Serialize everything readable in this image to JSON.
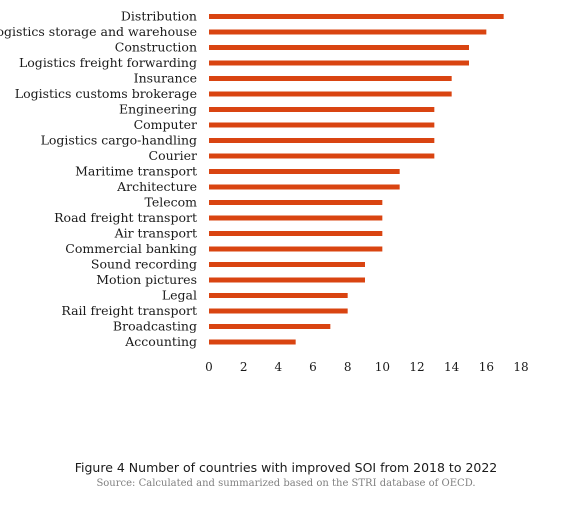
{
  "chart_data": {
    "type": "bar",
    "orientation": "horizontal",
    "categories": [
      "Distribution",
      "Logistics storage and warehouse",
      "Construction",
      "Logistics freight forwarding",
      "Insurance",
      "Logistics customs brokerage",
      "Engineering",
      "Computer",
      "Logistics cargo-handling",
      "Courier",
      "Maritime transport",
      "Architecture",
      "Telecom",
      "Road freight transport",
      "Air transport",
      "Commercial banking",
      "Sound recording",
      "Motion pictures",
      "Legal",
      "Rail freight transport",
      "Broadcasting",
      "Accounting"
    ],
    "values": [
      17,
      16,
      15,
      15,
      14,
      14,
      13,
      13,
      13,
      13,
      11,
      11,
      10,
      10,
      10,
      10,
      9,
      9,
      8,
      8,
      7,
      5
    ],
    "xlim": [
      0,
      18
    ],
    "xticks": [
      0,
      2,
      4,
      6,
      8,
      10,
      12,
      14,
      16,
      18
    ],
    "bar_color": "#d94411",
    "grid": false,
    "legend": "none"
  },
  "caption": {
    "title": "Figure 4 Number of countries with improved SOI from 2018 to 2022",
    "source": "Source: Calculated and summarized based on the STRI database of OECD."
  }
}
